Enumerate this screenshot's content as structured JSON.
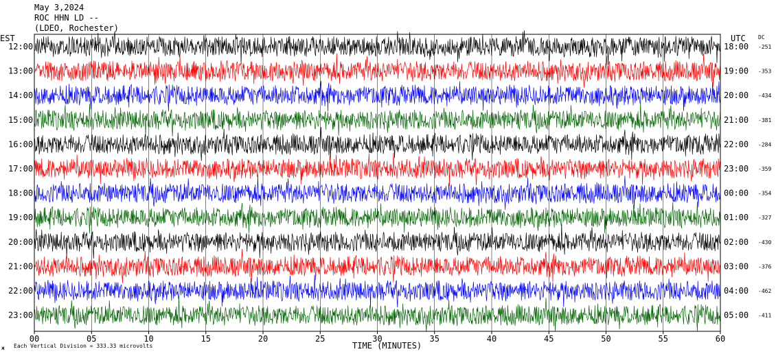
{
  "header": {
    "line1": "May 3,2024",
    "line2": "ROC HHN LD --",
    "line3": "(LDEO, Rochester)"
  },
  "chart_data": {
    "type": "line",
    "title": "",
    "xlabel": "TIME (MINUTES)",
    "xlim": [
      0,
      60
    ],
    "x_ticks": [
      "00",
      "05",
      "10",
      "15",
      "20",
      "25",
      "30",
      "35",
      "40",
      "45",
      "50",
      "55",
      "60"
    ],
    "left_axis_label": "EST",
    "right_axis_label": "UTC",
    "dc_label": "DC",
    "line_colors": [
      "#000000",
      "#ff0000",
      "#0000ff",
      "#006400"
    ],
    "rows": [
      {
        "est": "12:00",
        "utc": "18:00",
        "dc": "-251"
      },
      {
        "est": "13:00",
        "utc": "19:00",
        "dc": "-353"
      },
      {
        "est": "14:00",
        "utc": "20:00",
        "dc": "-434"
      },
      {
        "est": "15:00",
        "utc": "21:00",
        "dc": "-381"
      },
      {
        "est": "16:00",
        "utc": "22:00",
        "dc": "-284"
      },
      {
        "est": "17:00",
        "utc": "23:00",
        "dc": "-359"
      },
      {
        "est": "18:00",
        "utc": "00:00",
        "dc": "-354"
      },
      {
        "est": "19:00",
        "utc": "01:00",
        "dc": "-327"
      },
      {
        "est": "20:00",
        "utc": "02:00",
        "dc": "-430"
      },
      {
        "est": "21:00",
        "utc": "03:00",
        "dc": "-376"
      },
      {
        "est": "22:00",
        "utc": "04:00",
        "dc": "-462"
      },
      {
        "est": "23:00",
        "utc": "05:00",
        "dc": "-411"
      }
    ],
    "scale_note": "Each Vertical Division =  333.33 microvolts",
    "corner_mark": "ж"
  }
}
